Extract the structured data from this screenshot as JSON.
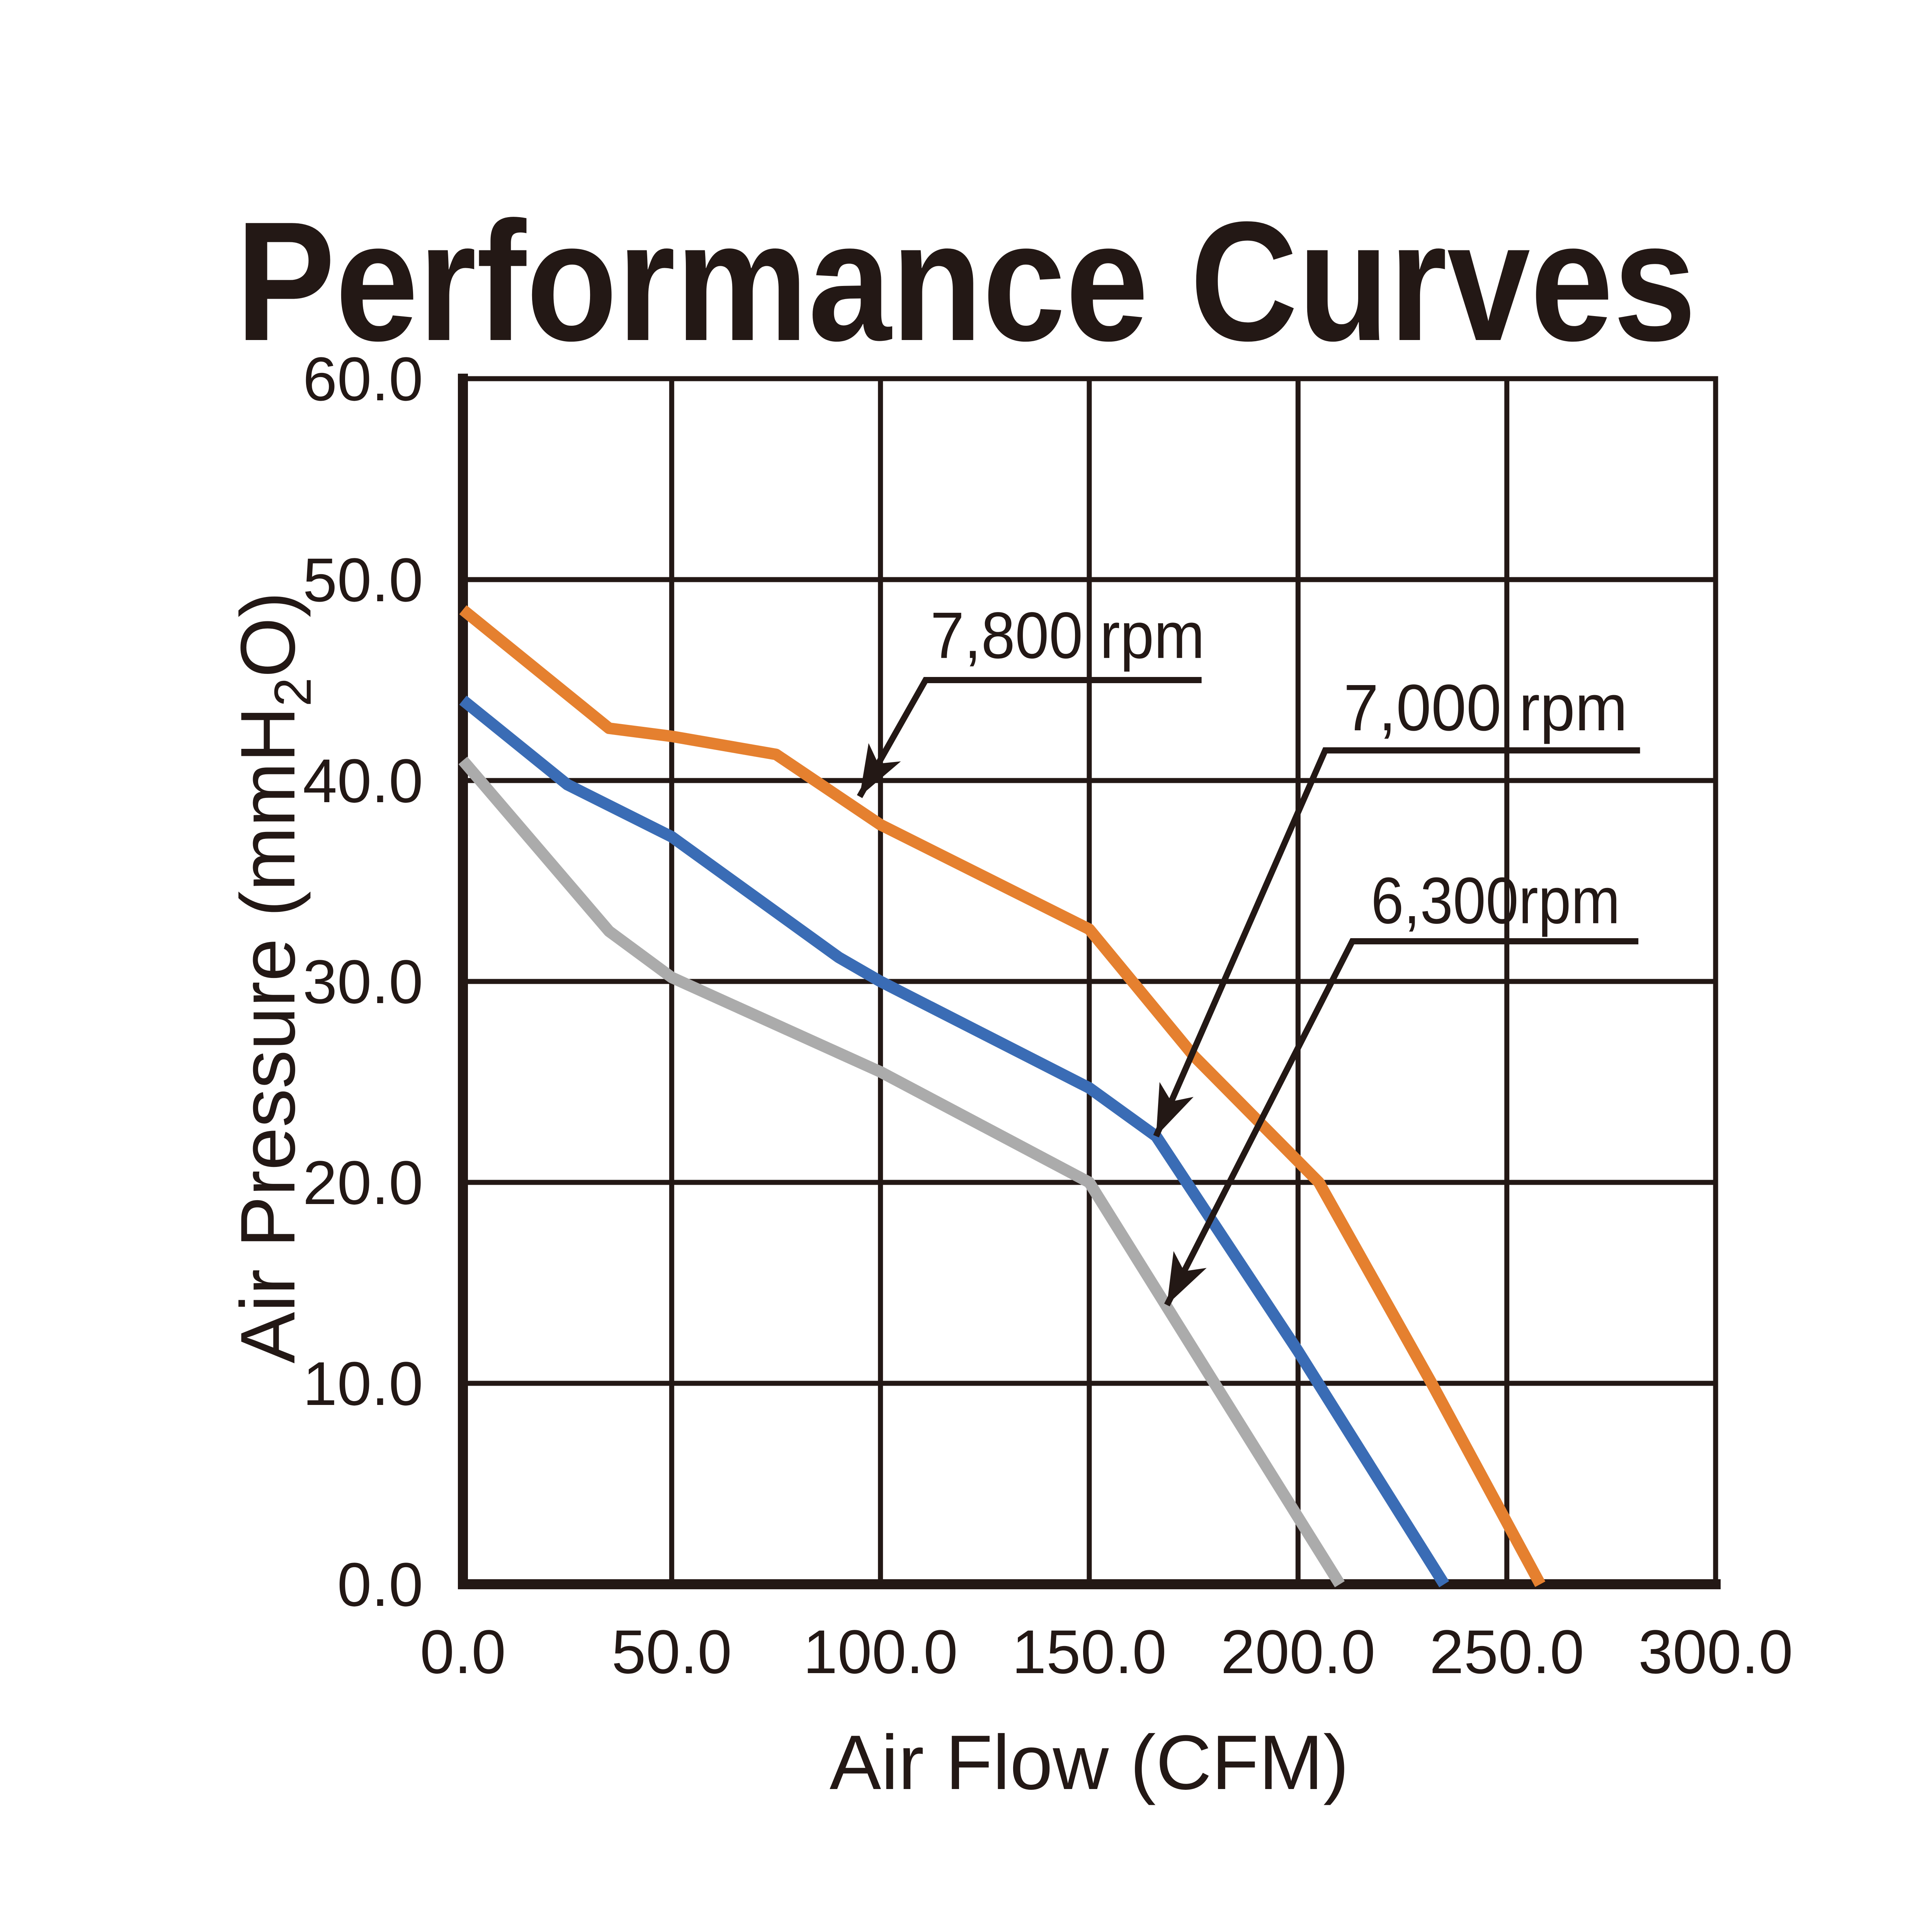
{
  "page": {
    "background": "#ffffff",
    "ink_color": "#231815"
  },
  "title": "Performance Curves",
  "chart_data": {
    "type": "line",
    "title": "Performance Curves",
    "xlabel": "Air Flow (CFM)",
    "ylabel": "Air Pressure (mmH2O)",
    "ylabel_parts": {
      "pre": "Air Pressure (mmH",
      "sub": "2",
      "post": "O)"
    },
    "xlim": [
      0,
      300
    ],
    "ylim": [
      0,
      60
    ],
    "grid": "on",
    "legend_position": "inline-annotations",
    "x_ticks": [
      {
        "v": 0,
        "label": "0.0"
      },
      {
        "v": 50,
        "label": "50.0"
      },
      {
        "v": 100,
        "label": "100.0"
      },
      {
        "v": 150,
        "label": "150.0"
      },
      {
        "v": 200,
        "label": "200.0"
      },
      {
        "v": 250,
        "label": "250.0"
      },
      {
        "v": 300,
        "label": "300.0"
      }
    ],
    "y_ticks": [
      {
        "v": 0,
        "label": "0.0"
      },
      {
        "v": 10,
        "label": "10.0"
      },
      {
        "v": 20,
        "label": "20.0"
      },
      {
        "v": 30,
        "label": "30.0"
      },
      {
        "v": 40,
        "label": "40.0"
      },
      {
        "v": 50,
        "label": "50.0"
      },
      {
        "v": 60,
        "label": "60.0"
      }
    ],
    "series": [
      {
        "name": "7,800 rpm",
        "color": "#e5802f",
        "points": [
          [
            0,
            48.5
          ],
          [
            35,
            42.6
          ],
          [
            50,
            42.2
          ],
          [
            75,
            41.3
          ],
          [
            100,
            37.8
          ],
          [
            125,
            35.2
          ],
          [
            150,
            32.6
          ],
          [
            175,
            26.3
          ],
          [
            205,
            20.0
          ],
          [
            232,
            10.0
          ],
          [
            258,
            0
          ]
        ]
      },
      {
        "name": "7,000 rpm",
        "color": "#3a6cb5",
        "points": [
          [
            0,
            44.0
          ],
          [
            25,
            39.8
          ],
          [
            50,
            37.2
          ],
          [
            90,
            31.2
          ],
          [
            100,
            30.0
          ],
          [
            150,
            24.7
          ],
          [
            166,
            22.3
          ],
          [
            200,
            11.6
          ],
          [
            235,
            0
          ]
        ]
      },
      {
        "name": "6,300rpm",
        "color": "#ababab",
        "points": [
          [
            0,
            41.0
          ],
          [
            35,
            32.5
          ],
          [
            50,
            30.2
          ],
          [
            100,
            25.5
          ],
          [
            150,
            20.0
          ],
          [
            210,
            0
          ]
        ]
      }
    ],
    "annotations": [
      {
        "text": "7,800 rpm",
        "series": "7,800 rpm",
        "text_cx": 144.8,
        "text_baseline_v": 46.1,
        "underline_v": 45.0,
        "underline_x1": 110.8,
        "underline_x2": 176.9,
        "arrow_tip": [
          95.0,
          39.2
        ]
      },
      {
        "text": "7,000 rpm",
        "series": "7,000 rpm",
        "text_cx": 244.9,
        "text_baseline_v": 42.5,
        "underline_v": 41.5,
        "underline_x1": 206.5,
        "underline_x2": 281.9,
        "arrow_tip": [
          166.0,
          22.3
        ]
      },
      {
        "text": "6,300rpm",
        "series": "6,300rpm",
        "text_cx": 247.3,
        "text_baseline_v": 32.9,
        "underline_v": 32.0,
        "underline_x1": 213.0,
        "underline_x2": 281.5,
        "arrow_tip": [
          168.6,
          13.9
        ]
      }
    ]
  }
}
